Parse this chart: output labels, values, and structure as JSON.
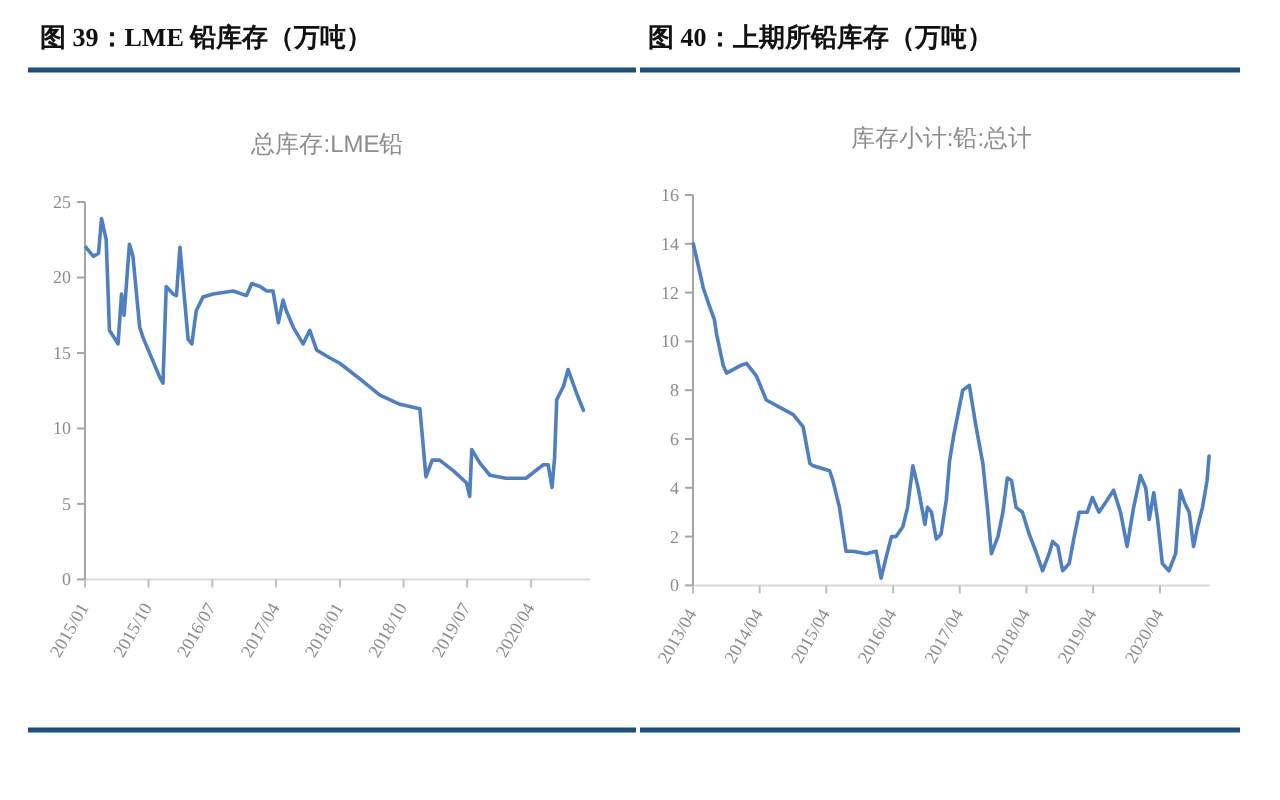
{
  "chart_data": [
    {
      "type": "line",
      "title": "图 39：LME 铅库存（万吨）",
      "subtitle": "总库存:LME铅",
      "color": "#4f7fbf",
      "x": [
        "2015-01-05",
        "2015-02-06",
        "2015-02-28",
        "2015-03-13",
        "2015-04-02",
        "2015-04-16",
        "2015-05-23",
        "2015-06-07",
        "2015-06-18",
        "2015-07-11",
        "2015-07-26",
        "2015-08-24",
        "2015-09-08",
        "2015-11-18",
        "2015-12-02",
        "2015-12-16",
        "2016-01-15",
        "2016-01-29",
        "2016-02-13",
        "2016-03-19",
        "2016-04-04",
        "2016-04-23",
        "2016-05-22",
        "2016-07-05",
        "2016-09-29",
        "2016-11-25",
        "2016-12-18",
        "2017-01-22",
        "2017-02-20",
        "2017-03-19",
        "2017-04-11",
        "2017-05-01",
        "2017-05-15",
        "2017-06-14",
        "2017-07-26",
        "2017-08-24",
        "2017-09-22",
        "2017-11-04",
        "2018-01-01",
        "2018-03-26",
        "2018-06-21",
        "2018-09-15",
        "2018-12-10",
        "2019-01-05",
        "2019-02-01",
        "2019-03-05",
        "2019-05-02",
        "2019-06-28",
        "2019-07-12",
        "2019-07-21",
        "2019-08-25",
        "2019-10-07",
        "2019-12-15",
        "2020-03-10",
        "2020-05-24",
        "2020-06-13",
        "2020-06-30",
        "2020-07-11",
        "2020-07-20",
        "2020-08-18",
        "2020-09-07",
        "2020-10-14",
        "2020-11-12"
      ],
      "values": [
        22.0,
        21.4,
        21.6,
        23.9,
        22.5,
        16.5,
        15.6,
        18.9,
        17.5,
        22.2,
        21.4,
        16.7,
        16.0,
        13.4,
        13.0,
        19.4,
        18.9,
        18.8,
        22.0,
        15.9,
        15.6,
        17.8,
        18.7,
        18.9,
        19.1,
        18.8,
        19.6,
        19.4,
        19.1,
        19.1,
        17.0,
        18.5,
        17.8,
        16.7,
        15.6,
        16.5,
        15.2,
        14.8,
        14.3,
        13.3,
        12.2,
        11.6,
        11.3,
        6.8,
        7.9,
        7.9,
        7.2,
        6.4,
        5.5,
        8.6,
        7.7,
        6.9,
        6.7,
        6.7,
        7.6,
        7.6,
        6.1,
        8.1,
        11.9,
        12.8,
        13.9,
        12.3,
        11.2
      ],
      "xlim": [
        "2015-01-01",
        "2020-12-10"
      ],
      "xticks": [
        {
          "value": "2015-01",
          "label": "2015/01"
        },
        {
          "value": "2015-10",
          "label": "2015/10"
        },
        {
          "value": "2016-07",
          "label": "2016/07"
        },
        {
          "value": "2017-04",
          "label": "2017/04"
        },
        {
          "value": "2018-01",
          "label": "2018/01"
        },
        {
          "value": "2018-10",
          "label": "2018/10"
        },
        {
          "value": "2019-07",
          "label": "2019/07"
        },
        {
          "value": "2020-04",
          "label": "2020/04"
        }
      ],
      "ylim": [
        0,
        25
      ],
      "yticks": [
        0,
        5,
        10,
        15,
        20,
        25
      ]
    },
    {
      "type": "line",
      "title": "图 40：上期所铅库存（万吨）",
      "subtitle": "库存小计:铅:总计",
      "color": "#4f7fbf",
      "x": [
        "2013-04-03",
        "2013-05-27",
        "2013-07-02",
        "2013-07-27",
        "2013-08-08",
        "2013-09-14",
        "2013-10-02",
        "2013-12-14",
        "2014-01-19",
        "2014-03-13",
        "2014-05-07",
        "2014-10-02",
        "2014-11-25",
        "2015-01-01",
        "2015-01-19",
        "2015-04-19",
        "2015-05-07",
        "2015-06-12",
        "2015-07-18",
        "2015-08-25",
        "2015-11-06",
        "2015-12-30",
        "2016-01-26",
        "2016-02-24",
        "2016-03-23",
        "2016-04-17",
        "2016-05-24",
        "2016-06-19",
        "2016-07-18",
        "2016-08-16",
        "2016-09-22",
        "2016-10-06",
        "2016-10-28",
        "2016-11-23",
        "2016-12-19",
        "2017-01-17",
        "2017-02-04",
        "2017-02-28",
        "2017-04-17",
        "2017-05-23",
        "2017-06-29",
        "2017-08-05",
        "2017-08-30",
        "2017-09-21",
        "2017-10-27",
        "2017-11-23",
        "2017-12-17",
        "2018-01-09",
        "2018-02-03",
        "2018-03-10",
        "2018-04-16",
        "2018-05-22",
        "2018-06-28",
        "2018-08-03",
        "2018-08-22",
        "2018-09-20",
        "2018-10-16",
        "2018-11-21",
        "2018-12-16",
        "2019-01-15",
        "2019-02-28",
        "2019-03-28",
        "2019-05-03",
        "2019-06-08",
        "2019-07-22",
        "2019-08-29",
        "2019-10-04",
        "2019-11-09",
        "2019-12-16",
        "2020-01-14",
        "2020-02-02",
        "2020-02-27",
        "2020-03-19",
        "2020-04-14",
        "2020-05-20",
        "2020-06-26",
        "2020-07-21",
        "2020-08-13",
        "2020-09-08",
        "2020-10-02",
        "2020-10-24",
        "2020-11-20",
        "2020-12-15",
        "2020-12-26"
      ],
      "values": [
        14.0,
        12.2,
        11.4,
        10.9,
        10.3,
        9.0,
        8.7,
        9.0,
        9.1,
        8.6,
        7.6,
        7.0,
        6.5,
        5.0,
        4.9,
        4.7,
        4.3,
        3.2,
        1.4,
        1.4,
        1.3,
        1.4,
        0.3,
        1.2,
        2.0,
        2.0,
        2.4,
        3.2,
        4.9,
        4.0,
        2.5,
        3.2,
        3.0,
        1.9,
        2.1,
        3.5,
        5.1,
        6.2,
        8.0,
        8.2,
        6.5,
        5.0,
        3.2,
        1.3,
        2.0,
        3.0,
        4.4,
        4.3,
        3.2,
        3.0,
        2.1,
        1.4,
        0.6,
        1.3,
        1.8,
        1.6,
        0.6,
        0.9,
        1.9,
        3.0,
        3.0,
        3.6,
        3.0,
        3.4,
        3.9,
        3.0,
        1.6,
        3.2,
        4.5,
        4.0,
        2.7,
        3.8,
        2.7,
        0.9,
        0.6,
        1.3,
        3.9,
        3.4,
        3.0,
        1.6,
        2.4,
        3.2,
        4.3,
        5.3
      ],
      "xlim": [
        "2013-04-01",
        "2020-12-31"
      ],
      "xticks": [
        {
          "value": "2013-04",
          "label": "2013/04"
        },
        {
          "value": "2014-04",
          "label": "2014/04"
        },
        {
          "value": "2015-04",
          "label": "2015/04"
        },
        {
          "value": "2016-04",
          "label": "2016/04"
        },
        {
          "value": "2017-04",
          "label": "2017/04"
        },
        {
          "value": "2018-04",
          "label": "2018/04"
        },
        {
          "value": "2019-04",
          "label": "2019/04"
        },
        {
          "value": "2020-04",
          "label": "2020/04"
        }
      ],
      "ylim": [
        0,
        16
      ],
      "yticks": [
        0,
        2,
        4,
        6,
        8,
        10,
        12,
        14,
        16
      ]
    }
  ]
}
